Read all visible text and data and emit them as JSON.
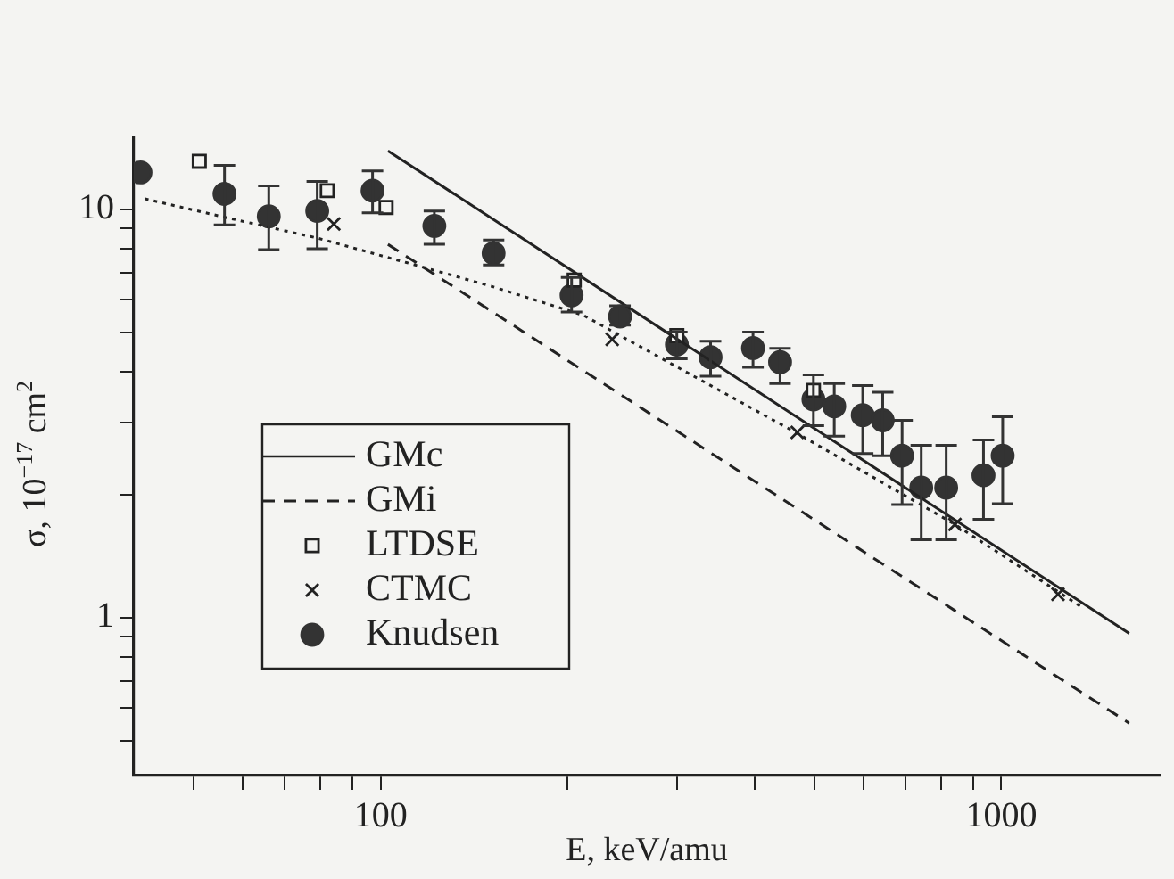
{
  "chart_data": {
    "type": "scatter",
    "xlabel": "E, keV/amu",
    "ylabel": "σ, 10$^{−17}$ cm$^{2}$",
    "log": "xy",
    "grid": false,
    "legend": "bottom left",
    "xlim": [
      40,
      1800
    ],
    "ylim": [
      0.41,
      15
    ],
    "xticks": [
      {
        "value": 50,
        "label": null
      },
      {
        "value": 60,
        "label": null
      },
      {
        "value": 70,
        "label": null
      },
      {
        "value": 80,
        "label": null
      },
      {
        "value": 90,
        "label": null
      },
      100,
      {
        "value": 200,
        "label": null
      },
      {
        "value": 300,
        "label": null
      },
      {
        "value": 400,
        "label": null
      },
      {
        "value": 500,
        "label": null
      },
      {
        "value": 600,
        "label": null
      },
      {
        "value": 700,
        "label": null
      },
      {
        "value": 800,
        "label": null
      },
      {
        "value": 900,
        "label": null
      },
      1000
    ],
    "yticks": [
      {
        "value": 0.5,
        "label": null
      },
      {
        "value": 0.6,
        "label": null
      },
      {
        "value": 0.7,
        "label": null
      },
      {
        "value": 0.8,
        "label": null
      },
      {
        "value": 0.9,
        "label": null
      },
      1,
      {
        "value": 2,
        "label": null
      },
      {
        "value": 3,
        "label": null
      },
      {
        "value": 4,
        "label": null
      },
      {
        "value": 5,
        "label": null
      },
      {
        "value": 6,
        "label": null
      },
      {
        "value": 7,
        "label": null
      },
      {
        "value": 8,
        "label": null
      },
      {
        "value": 9,
        "label": null
      },
      10
    ],
    "series": [
      {
        "name": "GMc",
        "type": "line",
        "color": "#222222",
        "line_style": "solid",
        "marker": "none",
        "x": [
          102.7,
          1607
        ],
        "values": [
          13.9,
          0.914
        ]
      },
      {
        "name": "GMi",
        "type": "line",
        "color": "#222222",
        "line_style": "dashed",
        "marker": "none",
        "x": [
          102.7,
          1607
        ],
        "values": [
          8.2,
          0.551
        ]
      },
      {
        "type": "line",
        "color": "#222222",
        "line_style": "dotted",
        "marker": "none",
        "x": [
          41.7,
          57,
          79,
          110,
          152,
          212,
          466,
          842,
          1361
        ],
        "values": [
          10.6,
          9.5,
          8.5,
          7.4,
          6.45,
          5.5,
          2.84,
          1.69,
          1.05
        ]
      },
      {
        "name": "LTDSE",
        "type": "scatter",
        "color": "#222222",
        "marker": "square",
        "x": [
          51,
          82,
          102,
          205,
          300,
          498
        ],
        "values": [
          13.1,
          11.1,
          10.1,
          6.7,
          4.9,
          3.6
        ]
      },
      {
        "name": "CTMC",
        "type": "scatter",
        "color": "#222222",
        "marker": "cross",
        "x": [
          84,
          236,
          469,
          842,
          1234
        ],
        "values": [
          9.2,
          4.8,
          2.84,
          1.69,
          1.14
        ]
      },
      {
        "name": "Knudsen",
        "type": "scatter",
        "color": "#333333",
        "marker": "circle",
        "x": [
          41,
          56,
          66,
          79,
          97,
          122,
          152,
          203,
          243,
          300,
          340,
          398,
          440,
          498,
          538,
          598,
          644,
          692,
          743,
          815,
          936,
          1005
        ],
        "values": [
          12.3,
          10.9,
          9.6,
          9.9,
          11.1,
          9.1,
          7.8,
          6.15,
          5.46,
          4.66,
          4.34,
          4.57,
          4.22,
          3.42,
          3.29,
          3.13,
          3.04,
          2.49,
          2.08,
          2.08,
          2.23,
          2.49
        ],
        "errors": [
          null,
          [
            9.15,
            12.8
          ],
          [
            7.96,
            11.4
          ],
          [
            8.0,
            11.7
          ],
          [
            9.8,
            12.4
          ],
          [
            8.2,
            9.9
          ],
          [
            7.3,
            8.4
          ],
          [
            5.6,
            6.8
          ],
          [
            5.2,
            5.8
          ],
          [
            4.3,
            5.0
          ],
          [
            3.9,
            4.75
          ],
          [
            4.1,
            5.0
          ],
          [
            3.74,
            4.56
          ],
          [
            2.95,
            3.93
          ],
          [
            2.78,
            3.74
          ],
          [
            2.52,
            3.7
          ],
          [
            2.49,
            3.56
          ],
          [
            1.89,
            3.04
          ],
          [
            1.55,
            2.64
          ],
          [
            1.55,
            2.64
          ],
          [
            1.74,
            2.72
          ],
          [
            1.9,
            3.1
          ]
        ]
      }
    ]
  }
}
